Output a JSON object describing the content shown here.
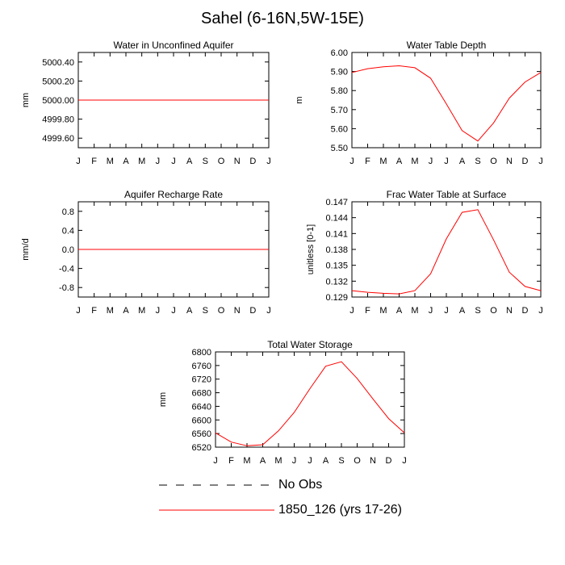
{
  "title": "Sahel (6-16N,5W-15E)",
  "colors": {
    "model_line": "#ff0000",
    "obs_line": "#000000",
    "axis": "#000000"
  },
  "chart_data": [
    {
      "type": "line",
      "title": "Water in Unconfined Aquifer",
      "ylabel": "mm",
      "categories": [
        "J",
        "F",
        "M",
        "A",
        "M",
        "J",
        "J",
        "A",
        "S",
        "O",
        "N",
        "D",
        "J"
      ],
      "ylim": [
        4999.5,
        5000.5
      ],
      "yticks": [
        4999.6,
        4999.8,
        5000.0,
        5000.2,
        5000.4
      ],
      "ytick_labels": [
        "4999.60",
        "4999.80",
        "5000.00",
        "5000.20",
        "5000.40"
      ],
      "series": [
        {
          "name": "1850_126 (yrs 17-26)",
          "values": [
            5000,
            5000,
            5000,
            5000,
            5000,
            5000,
            5000,
            5000,
            5000,
            5000,
            5000,
            5000,
            5000
          ]
        }
      ]
    },
    {
      "type": "line",
      "title": "Water Table Depth",
      "ylabel": "m",
      "categories": [
        "J",
        "F",
        "M",
        "A",
        "M",
        "J",
        "J",
        "A",
        "S",
        "O",
        "N",
        "D",
        "J"
      ],
      "ylim": [
        5.5,
        6.0
      ],
      "yticks": [
        5.5,
        5.6,
        5.7,
        5.8,
        5.9,
        6.0
      ],
      "ytick_labels": [
        "5.50",
        "5.60",
        "5.70",
        "5.80",
        "5.90",
        "6.00"
      ],
      "series": [
        {
          "name": "1850_126 (yrs 17-26)",
          "values": [
            5.895,
            5.915,
            5.925,
            5.93,
            5.92,
            5.865,
            5.73,
            5.59,
            5.535,
            5.63,
            5.76,
            5.845,
            5.895
          ]
        }
      ]
    },
    {
      "type": "line",
      "title": "Aquifer Recharge Rate",
      "ylabel": "mm/d",
      "categories": [
        "J",
        "F",
        "M",
        "A",
        "M",
        "J",
        "J",
        "A",
        "S",
        "O",
        "N",
        "D",
        "J"
      ],
      "ylim": [
        -1.0,
        1.0
      ],
      "yticks": [
        -0.8,
        -0.4,
        0.0,
        0.4,
        0.8
      ],
      "ytick_labels": [
        "-0.8",
        "-0.4",
        "0.0",
        "0.4",
        "0.8"
      ],
      "series": [
        {
          "name": "1850_126 (yrs 17-26)",
          "values": [
            0,
            0,
            0,
            0,
            0,
            0,
            0,
            0,
            0,
            0,
            0,
            0,
            0
          ]
        }
      ]
    },
    {
      "type": "line",
      "title": "Frac Water Table at Surface",
      "ylabel": "unitless [0-1]",
      "categories": [
        "J",
        "F",
        "M",
        "A",
        "M",
        "J",
        "J",
        "A",
        "S",
        "O",
        "N",
        "D",
        "J"
      ],
      "ylim": [
        0.129,
        0.147
      ],
      "yticks": [
        0.129,
        0.132,
        0.135,
        0.138,
        0.141,
        0.144,
        0.147
      ],
      "ytick_labels": [
        "0.129",
        "0.132",
        "0.135",
        "0.138",
        "0.141",
        "0.144",
        "0.147"
      ],
      "series": [
        {
          "name": "1850_126 (yrs 17-26)",
          "values": [
            0.1302,
            0.1299,
            0.1297,
            0.1296,
            0.1302,
            0.1334,
            0.14,
            0.145,
            0.1455,
            0.1398,
            0.1337,
            0.131,
            0.1302
          ]
        }
      ]
    },
    {
      "type": "line",
      "title": "Total Water Storage",
      "ylabel": "mm",
      "categories": [
        "J",
        "F",
        "M",
        "A",
        "M",
        "J",
        "J",
        "A",
        "S",
        "O",
        "N",
        "D",
        "J"
      ],
      "ylim": [
        6520,
        6800
      ],
      "yticks": [
        6520,
        6560,
        6600,
        6640,
        6680,
        6720,
        6760,
        6800
      ],
      "ytick_labels": [
        "6520",
        "6560",
        "6600",
        "6640",
        "6680",
        "6720",
        "6760",
        "6800"
      ],
      "series": [
        {
          "name": "1850_126 (yrs 17-26)",
          "values": [
            6562,
            6535,
            6524,
            6527,
            6568,
            6622,
            6692,
            6758,
            6771,
            6722,
            6662,
            6604,
            6562
          ]
        }
      ]
    }
  ],
  "legend": [
    {
      "label": "No Obs",
      "style": "dashed"
    },
    {
      "label": "1850_126 (yrs 17-26)",
      "style": "solid"
    }
  ]
}
